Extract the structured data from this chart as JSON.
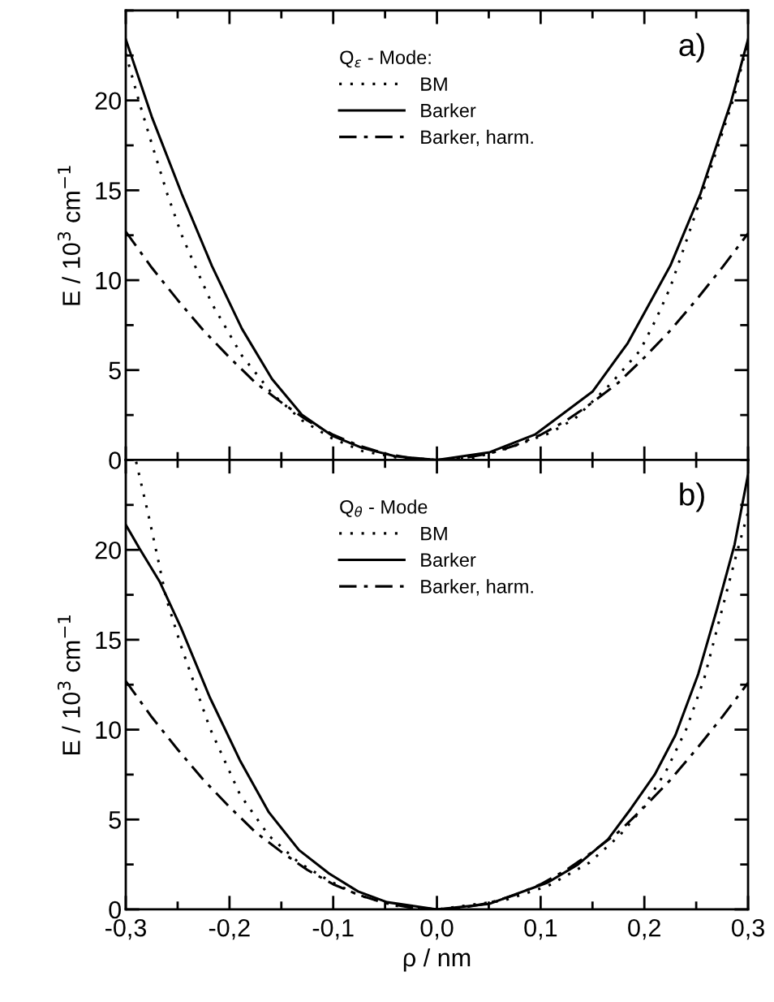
{
  "chart_data": [
    {
      "type": "line",
      "legend_title": "Q$_{ε}$ - Mode:",
      "ylabel": "E / 10$^{3}$ cm$^{−1}$",
      "annotations": [
        "a)"
      ],
      "xlim": [
        -0.3,
        0.3
      ],
      "ylim": [
        0,
        25
      ],
      "xticks": [
        -0.3,
        -0.2,
        -0.1,
        0.0,
        0.1,
        0.2,
        0.3
      ],
      "yticks": [
        0,
        5,
        10,
        15,
        20
      ],
      "tick_labels": "y",
      "grid": false,
      "legend": "top",
      "series": [
        {
          "name": "BM",
          "color": "#000000",
          "line_style": "dotted",
          "x": [
            -0.3,
            -0.287,
            -0.275,
            -0.26,
            -0.246,
            -0.231,
            -0.217,
            -0.188,
            -0.159,
            -0.13,
            -0.101,
            -0.072,
            -0.04,
            0.0,
            0.035,
            0.066,
            0.109,
            0.133,
            0.167,
            0.196,
            0.211,
            0.225,
            0.24,
            0.254,
            0.269,
            0.286,
            0.296,
            0.3
          ],
          "values": [
            22.6,
            19.9,
            17.6,
            14.8,
            12.5,
            10.5,
            8.7,
            5.8,
            3.7,
            2.2,
            1.2,
            0.5,
            0.15,
            0.0,
            0.12,
            0.6,
            1.5,
            2.3,
            4.2,
            6.1,
            7.8,
            9.6,
            12.1,
            14.5,
            17.1,
            20.1,
            22.4,
            23.2
          ]
        },
        {
          "name": "Barker",
          "color": "#000000",
          "line_style": "solid",
          "x": [
            -0.3,
            -0.275,
            -0.246,
            -0.217,
            -0.188,
            -0.159,
            -0.13,
            -0.101,
            -0.072,
            -0.04,
            0.0,
            0.051,
            0.095,
            0.15,
            0.184,
            0.225,
            0.254,
            0.283,
            0.3
          ],
          "values": [
            23.4,
            19.1,
            14.8,
            10.8,
            7.3,
            4.5,
            2.5,
            1.35,
            0.67,
            0.2,
            0.0,
            0.43,
            1.43,
            3.8,
            6.5,
            10.8,
            14.8,
            19.8,
            23.4
          ]
        },
        {
          "name": "Barker, harm.",
          "color": "#000000",
          "line_style": "dashdot",
          "x": [
            -0.3,
            -0.275,
            -0.25,
            -0.225,
            -0.2,
            -0.175,
            -0.15,
            -0.125,
            -0.1,
            -0.075,
            -0.05,
            -0.025,
            0.0,
            0.025,
            0.05,
            0.075,
            0.1,
            0.125,
            0.15,
            0.175,
            0.2,
            0.225,
            0.25,
            0.275,
            0.3
          ],
          "values": [
            12.7,
            10.7,
            8.9,
            7.2,
            5.7,
            4.3,
            3.2,
            2.2,
            1.4,
            0.8,
            0.35,
            0.1,
            0.0,
            0.1,
            0.35,
            0.8,
            1.4,
            2.2,
            3.2,
            4.3,
            5.7,
            7.2,
            8.9,
            10.7,
            12.6
          ]
        }
      ]
    },
    {
      "type": "line",
      "legend_title": "Q$_{θ}$ - Mode",
      "ylabel": "E / 10$^{3}$ cm$^{−1}$",
      "xlabel": "ρ / nm",
      "annotations": [
        "b)"
      ],
      "xlim": [
        -0.3,
        0.3
      ],
      "ylim": [
        0,
        25
      ],
      "xticks": [
        {
          "value": -0.3,
          "label": "-0,3"
        },
        {
          "value": -0.2,
          "label": "-0,2"
        },
        {
          "value": -0.1,
          "label": "-0,1"
        },
        {
          "value": 0.0,
          "label": "0,0"
        },
        {
          "value": 0.1,
          "label": "0,1"
        },
        {
          "value": 0.2,
          "label": "0,2"
        },
        {
          "value": 0.3,
          "label": "0,3"
        }
      ],
      "yticks": [
        0,
        5,
        10,
        15,
        20
      ],
      "grid": false,
      "legend": "top",
      "series": [
        {
          "name": "BM",
          "color": "#000000",
          "line_style": "dotted",
          "x": [
            -0.29,
            -0.278,
            -0.269,
            -0.261,
            -0.247,
            -0.233,
            -0.219,
            -0.19,
            -0.162,
            -0.133,
            -0.104,
            -0.076,
            -0.04,
            0.0,
            0.065,
            0.107,
            0.147,
            0.176,
            0.198,
            0.221,
            0.241,
            0.258,
            0.275,
            0.289,
            0.3
          ],
          "values": [
            24.9,
            21.9,
            19.5,
            17.3,
            14.7,
            12.4,
            10.1,
            6.4,
            4.1,
            2.6,
            1.6,
            0.8,
            0.2,
            0.0,
            0.5,
            1.3,
            2.6,
            4.1,
            5.6,
            7.7,
            10.1,
            12.9,
            16.7,
            19.8,
            22.1
          ]
        },
        {
          "name": "Barker",
          "color": "#000000",
          "line_style": "solid",
          "x": [
            -0.3,
            -0.287,
            -0.267,
            -0.247,
            -0.219,
            -0.19,
            -0.162,
            -0.133,
            -0.104,
            -0.076,
            -0.048,
            0.0,
            0.05,
            0.107,
            0.136,
            0.165,
            0.187,
            0.21,
            0.23,
            0.252,
            0.27,
            0.287,
            0.3
          ],
          "values": [
            21.4,
            20.1,
            18.2,
            15.7,
            11.8,
            8.3,
            5.4,
            3.3,
            2.0,
            1.0,
            0.4,
            0.0,
            0.3,
            1.5,
            2.5,
            3.9,
            5.6,
            7.5,
            9.7,
            13.1,
            16.7,
            20.3,
            24.2
          ]
        },
        {
          "name": "Barker, harm.",
          "color": "#000000",
          "line_style": "dashdot",
          "x": [
            -0.3,
            -0.275,
            -0.25,
            -0.225,
            -0.2,
            -0.175,
            -0.15,
            -0.125,
            -0.1,
            -0.075,
            -0.05,
            -0.025,
            0.0,
            0.025,
            0.05,
            0.075,
            0.1,
            0.125,
            0.15,
            0.175,
            0.2,
            0.225,
            0.25,
            0.275,
            0.3
          ],
          "values": [
            12.7,
            10.7,
            8.9,
            7.2,
            5.7,
            4.3,
            3.2,
            2.2,
            1.4,
            0.8,
            0.35,
            0.1,
            0.0,
            0.1,
            0.35,
            0.8,
            1.4,
            2.2,
            3.2,
            4.3,
            5.7,
            7.2,
            8.9,
            10.7,
            12.6
          ]
        }
      ]
    }
  ]
}
